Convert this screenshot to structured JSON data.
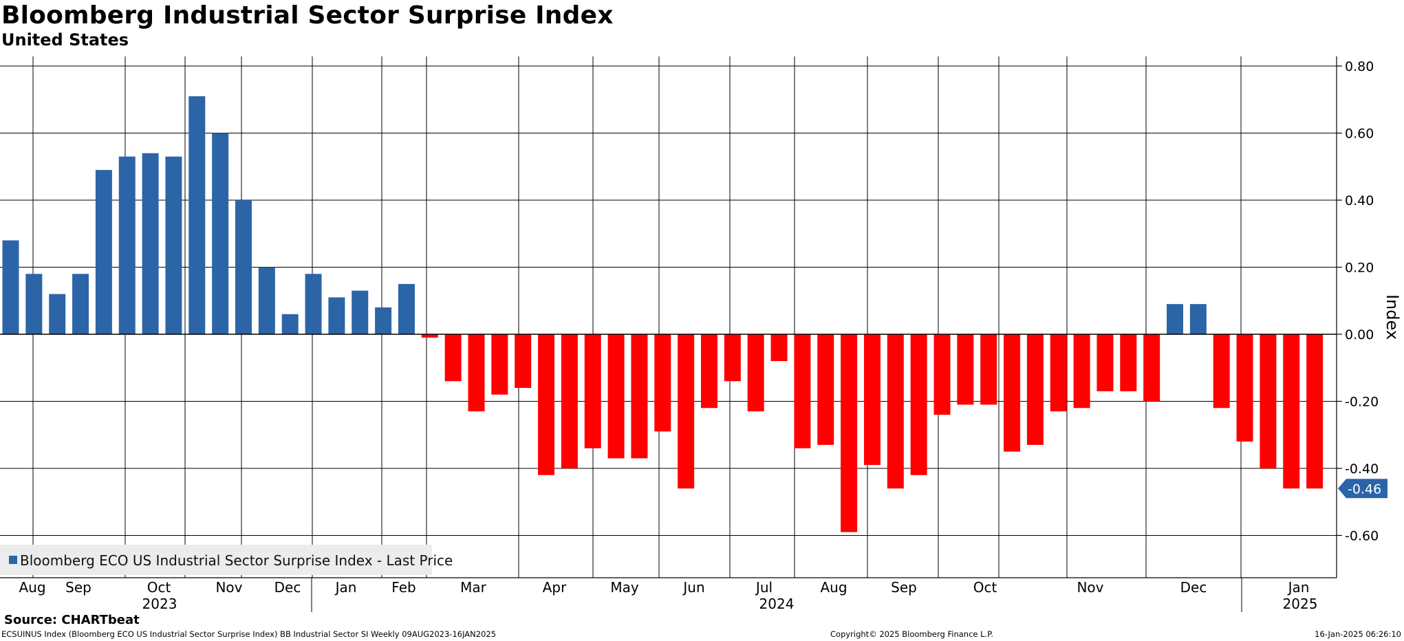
{
  "header": {
    "title": "Bloomberg Industrial Sector Surprise Index",
    "subtitle": "United States"
  },
  "chart_data": {
    "type": "bar",
    "title": "Bloomberg Industrial Sector Surprise Index",
    "subtitle": "United States",
    "ylabel": "Index",
    "ylim": [
      -0.72,
      0.83
    ],
    "yticks": [
      0.8,
      0.6,
      0.4,
      0.2,
      0.0,
      -0.2,
      -0.4,
      -0.6
    ],
    "ytick_labels": [
      "0.80",
      "0.60",
      "0.40",
      "0.20",
      "0.00",
      "-0.20",
      "-0.40",
      "-0.60"
    ],
    "grid": true,
    "frequency": "Weekly",
    "x_start_label": "09AUG2023",
    "x_end_label": "16JAN2025",
    "positive_color": "#2b65a8",
    "negative_color": "#ff0000",
    "values": [
      0.28,
      0.18,
      0.12,
      0.18,
      0.49,
      0.53,
      0.54,
      0.53,
      0.71,
      0.6,
      0.4,
      0.2,
      0.06,
      0.18,
      0.11,
      0.13,
      0.08,
      0.15,
      -0.01,
      -0.14,
      -0.23,
      -0.18,
      -0.16,
      -0.42,
      -0.4,
      -0.34,
      -0.37,
      -0.37,
      -0.29,
      -0.46,
      -0.22,
      -0.14,
      -0.23,
      -0.08,
      -0.34,
      -0.33,
      -0.59,
      -0.39,
      -0.46,
      -0.42,
      -0.24,
      -0.21,
      -0.21,
      -0.35,
      -0.33,
      -0.23,
      -0.22,
      -0.17,
      -0.17,
      -0.2,
      0.09,
      0.09,
      -0.22,
      -0.32,
      -0.4,
      -0.46,
      -0.46
    ],
    "month_labels": [
      "Aug",
      "Sep",
      "Oct",
      "Nov",
      "Dec",
      "Jan",
      "Feb",
      "Mar",
      "Apr",
      "May",
      "Jun",
      "Jul",
      "Aug",
      "Sep",
      "Oct",
      "Nov",
      "Dec",
      "Jan"
    ],
    "year_labels": [
      "2023",
      "2024",
      "2025"
    ],
    "legend": {
      "text": "Bloomberg ECO US Industrial Sector Surprise Index - Last Price",
      "placement": "bottom-left"
    },
    "last_price": {
      "value": -0.46,
      "label": "-0.46"
    }
  },
  "footer": {
    "source": "Source: CHARTbeat",
    "description": "ECSUINUS Index (Bloomberg ECO US Industrial Sector Surprise Index) BB Industrial Sector SI  Weekly 09AUG2023-16JAN2025",
    "copyright": "Copyright© 2025 Bloomberg Finance L.P.",
    "timestamp": "16-Jan-2025 06:26:10"
  }
}
